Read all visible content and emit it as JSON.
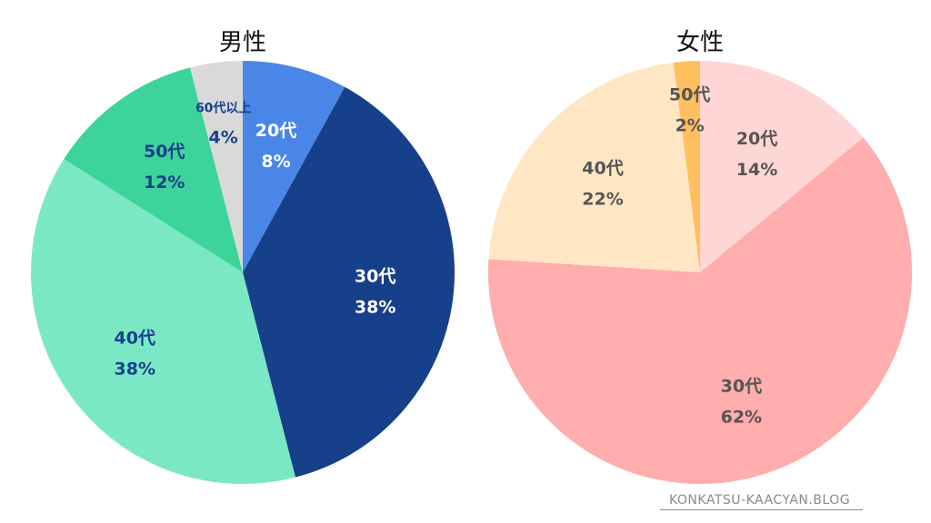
{
  "chart_data": [
    {
      "type": "pie",
      "title": "男性",
      "start": "12 o'clock",
      "direction": "clockwise",
      "slices": [
        {
          "label": "20代",
          "value": 8,
          "value_label": "8%",
          "color": "#4a86e8",
          "text_color": "#ffffff"
        },
        {
          "label": "30代",
          "value": 38,
          "value_label": "38%",
          "color": "#17408b",
          "text_color": "#ffffff"
        },
        {
          "label": "40代",
          "value": 38,
          "value_label": "38%",
          "color": "#7ae8c4",
          "text_color": "#17408b"
        },
        {
          "label": "50代",
          "value": 12,
          "value_label": "12%",
          "color": "#3dd49c",
          "text_color": "#17408b"
        },
        {
          "label": "60代以上",
          "value": 4,
          "value_label": "4%",
          "color": "#d9d9d9",
          "text_color": "#17408b"
        }
      ]
    },
    {
      "type": "pie",
      "title": "女性",
      "start": "12 o'clock",
      "direction": "clockwise",
      "slices": [
        {
          "label": "20代",
          "value": 14,
          "value_label": "14%",
          "color": "#ffd6d6",
          "text_color": "#555555"
        },
        {
          "label": "30代",
          "value": 62,
          "value_label": "62%",
          "color": "#ffadad",
          "text_color": "#555555"
        },
        {
          "label": "40代",
          "value": 22,
          "value_label": "22%",
          "color": "#ffe6c4",
          "text_color": "#555555"
        },
        {
          "label": "50代",
          "value": 2,
          "value_label": "2%",
          "color": "#ffbf5e",
          "text_color": "#555555"
        }
      ]
    }
  ],
  "watermark": "KONKATSU-KAACYAN.BLOG"
}
